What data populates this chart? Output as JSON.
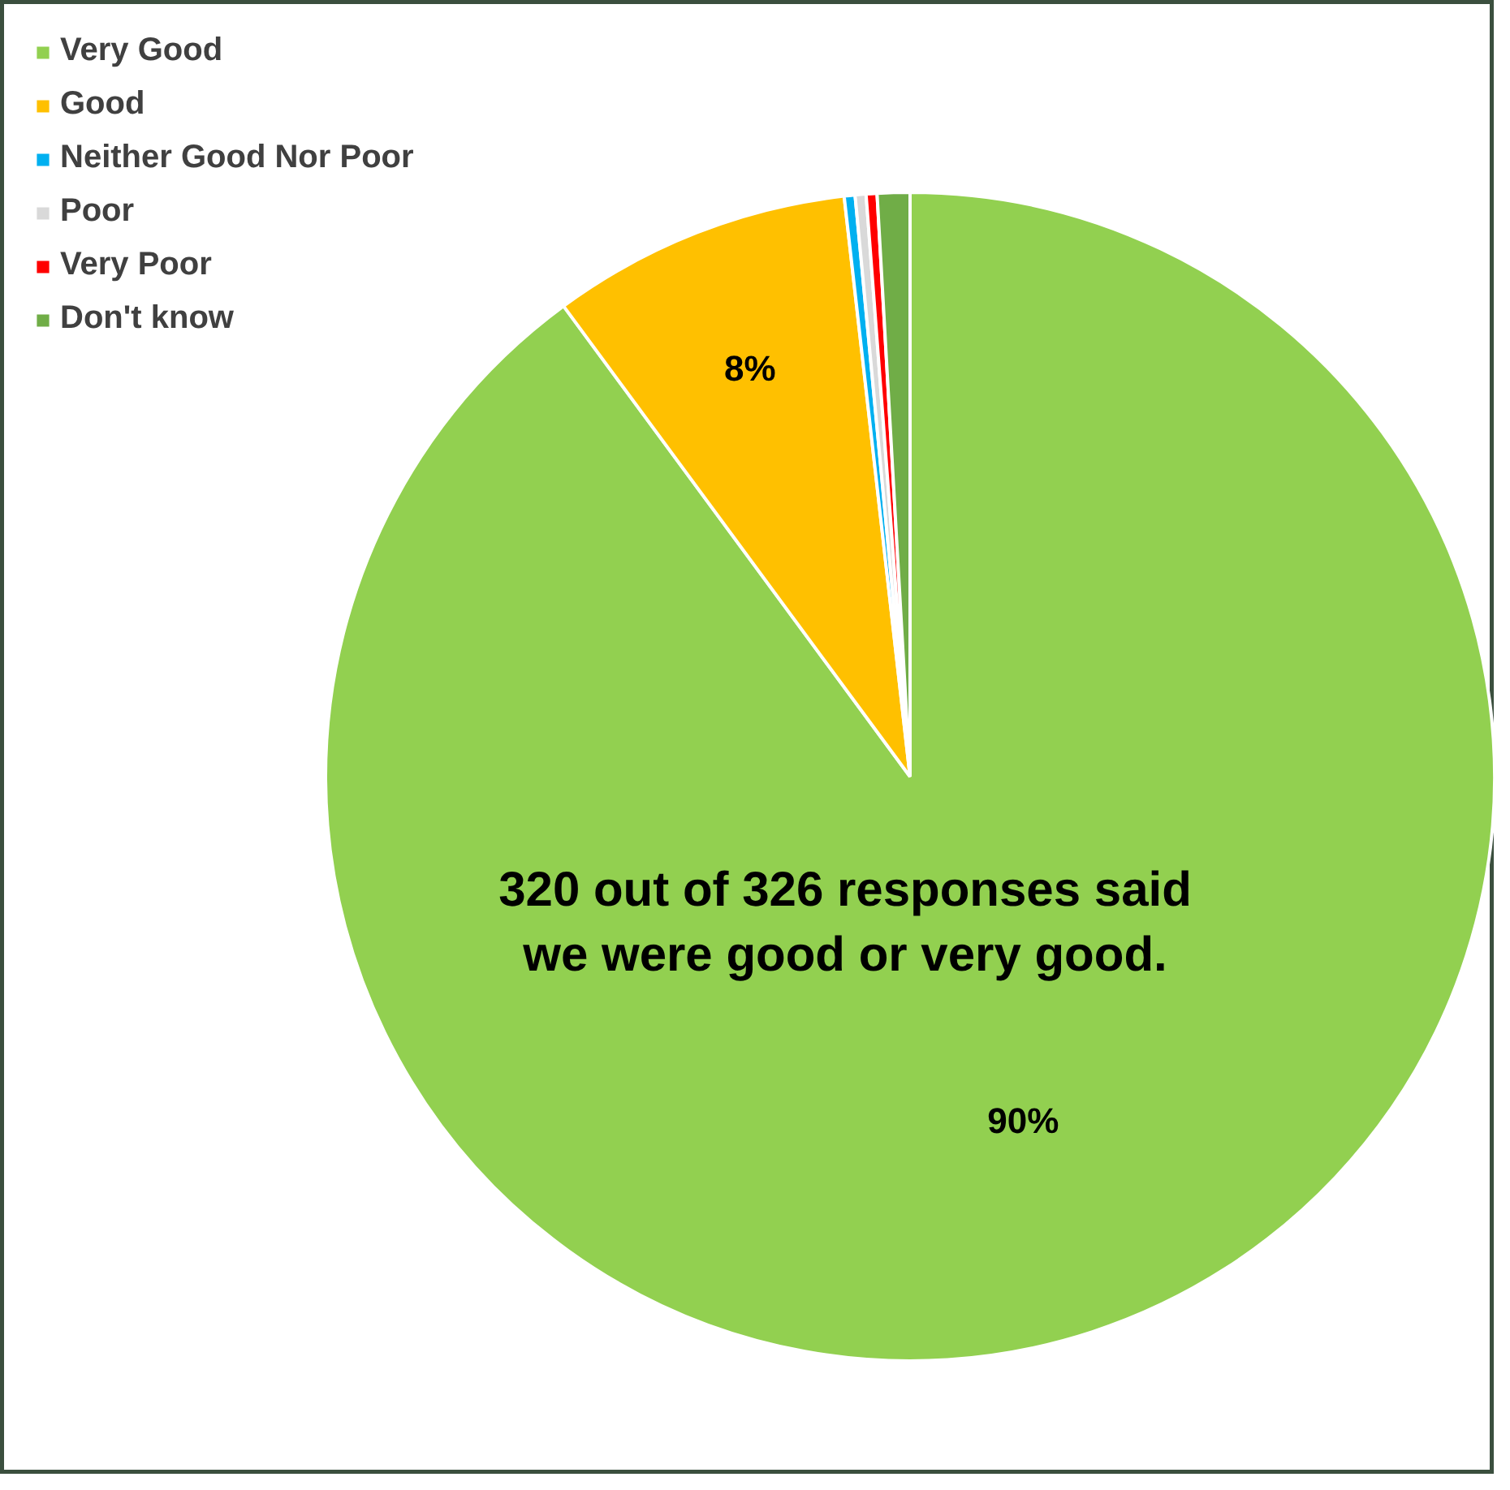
{
  "chart_data": {
    "type": "pie",
    "categories": [
      "Very Good",
      "Good",
      "Neither Good Nor Poor",
      "Poor",
      "Very Poor",
      "Don't know"
    ],
    "values": [
      89.9,
      8.3,
      0.3,
      0.3,
      0.3,
      0.9
    ],
    "colors": [
      "#92d050",
      "#ffc000",
      "#00b0f0",
      "#d9d9d9",
      "#ff0000",
      "#70ad47"
    ],
    "value_labels": [
      "90%",
      "8%",
      null,
      null,
      null,
      null
    ],
    "annotations": [
      "320 out of 326 responses said we were good or very good."
    ],
    "legend": "top left"
  }
}
